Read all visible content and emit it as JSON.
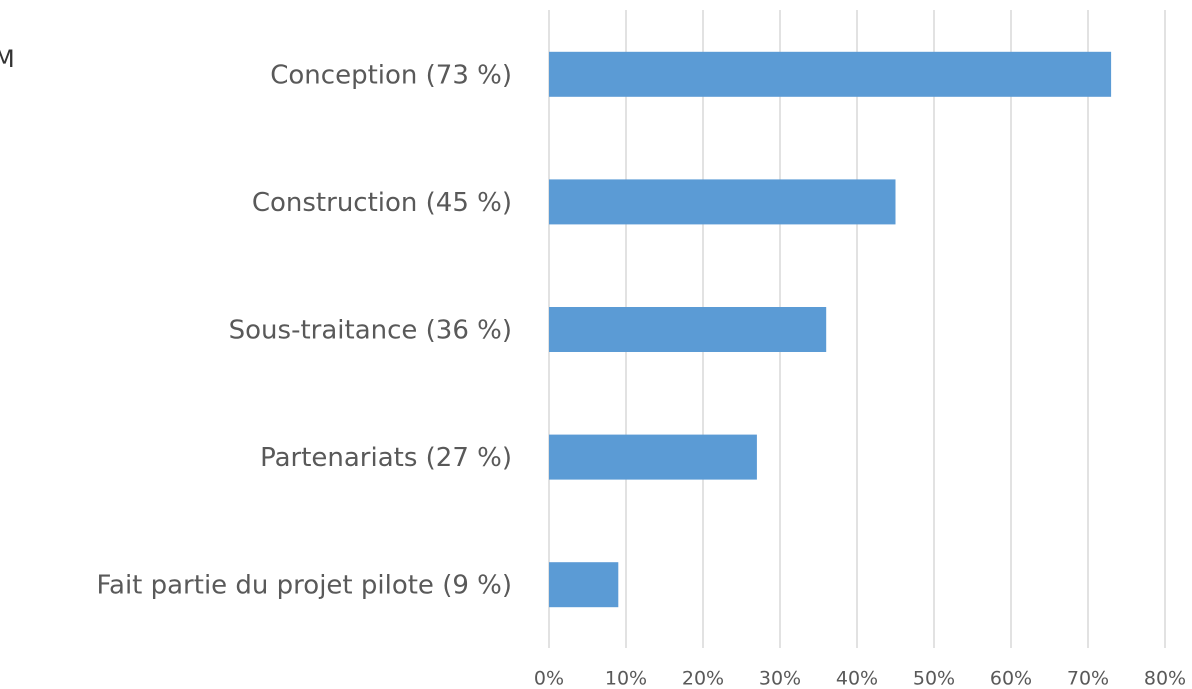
{
  "chart_data": {
    "type": "bar",
    "orientation": "horizontal",
    "annotation": "M",
    "categories": [
      "Conception (73 %)",
      "Construction (45 %)",
      "Sous-traitance (36 %)",
      "Partenariats (27 %)",
      "Fait partie du projet pilote (9 %)"
    ],
    "values": [
      73,
      45,
      36,
      27,
      9
    ],
    "color": "#5b9bd5",
    "xlim": [
      0,
      80
    ],
    "xticks": [
      {
        "value": 0,
        "label": "0%"
      },
      {
        "value": 10,
        "label": "10%"
      },
      {
        "value": 20,
        "label": "20%"
      },
      {
        "value": 30,
        "label": "30%"
      },
      {
        "value": 40,
        "label": "40%"
      },
      {
        "value": 50,
        "label": "50%"
      },
      {
        "value": 60,
        "label": "60%"
      },
      {
        "value": 70,
        "label": "70%"
      },
      {
        "value": 80,
        "label": "80%"
      }
    ],
    "grid": true
  }
}
